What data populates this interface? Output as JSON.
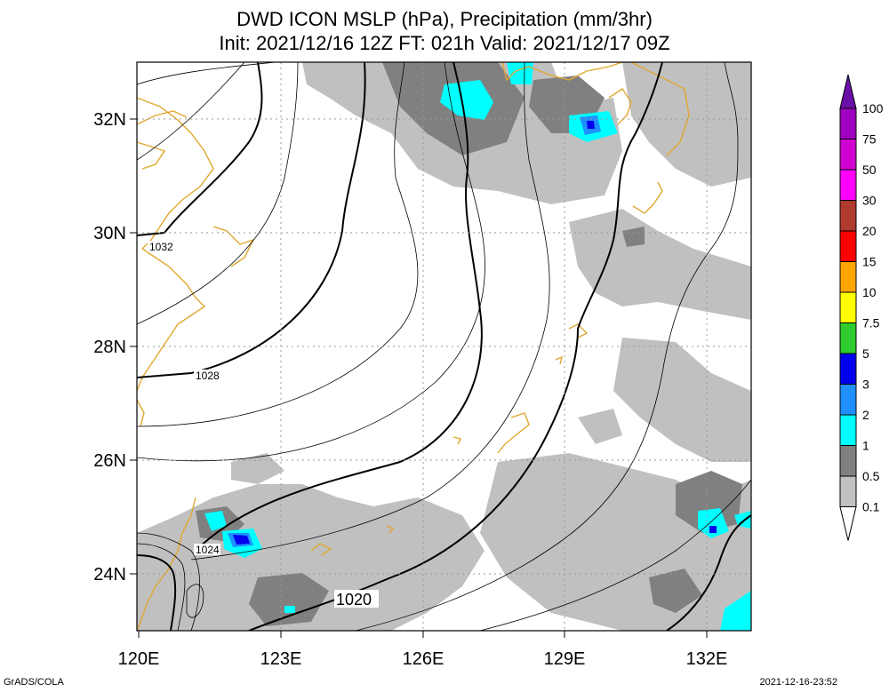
{
  "title_line1": "DWD ICON MSLP (hPa), Precipitation (mm/3hr)",
  "title_line2": "Init: 2021/12/16 12Z  FT: 021h  Valid: 2021/12/17 09Z",
  "footer_left": "GrADS/COLA",
  "footer_right": "2021-12-16-23:52",
  "map": {
    "lon_range": [
      120,
      133
    ],
    "lat_range": [
      23,
      33
    ],
    "lon_ticks": [
      {
        "v": 120,
        "label": "120E"
      },
      {
        "v": 123,
        "label": "123E"
      },
      {
        "v": 126,
        "label": "126E"
      },
      {
        "v": 129,
        "label": "129E"
      },
      {
        "v": 132,
        "label": "132E"
      }
    ],
    "lat_ticks": [
      {
        "v": 24,
        "label": "24N"
      },
      {
        "v": 26,
        "label": "26N"
      },
      {
        "v": 28,
        "label": "28N"
      },
      {
        "v": 30,
        "label": "30N"
      },
      {
        "v": 32,
        "label": "32N"
      }
    ],
    "isobar_labels": [
      "1032",
      "1028",
      "1024",
      "1020"
    ],
    "colors": {
      "coast": "#e0a830",
      "isobar": "#000000",
      "grid": "#999999"
    }
  },
  "colorbar": {
    "labels": [
      "100",
      "75",
      "50",
      "30",
      "20",
      "15",
      "10",
      "7.5",
      "5",
      "3",
      "2",
      "1",
      "0.5",
      "0.1"
    ],
    "colors": [
      "#6a0fa8",
      "#a000c0",
      "#d000d0",
      "#ff00ff",
      "#b03a2e",
      "#ff0000",
      "#ffa500",
      "#ffff00",
      "#2ecc2e",
      "#0000ee",
      "#1e90ff",
      "#00ffff",
      "#808080",
      "#c0c0c0",
      "#ffffff"
    ]
  }
}
